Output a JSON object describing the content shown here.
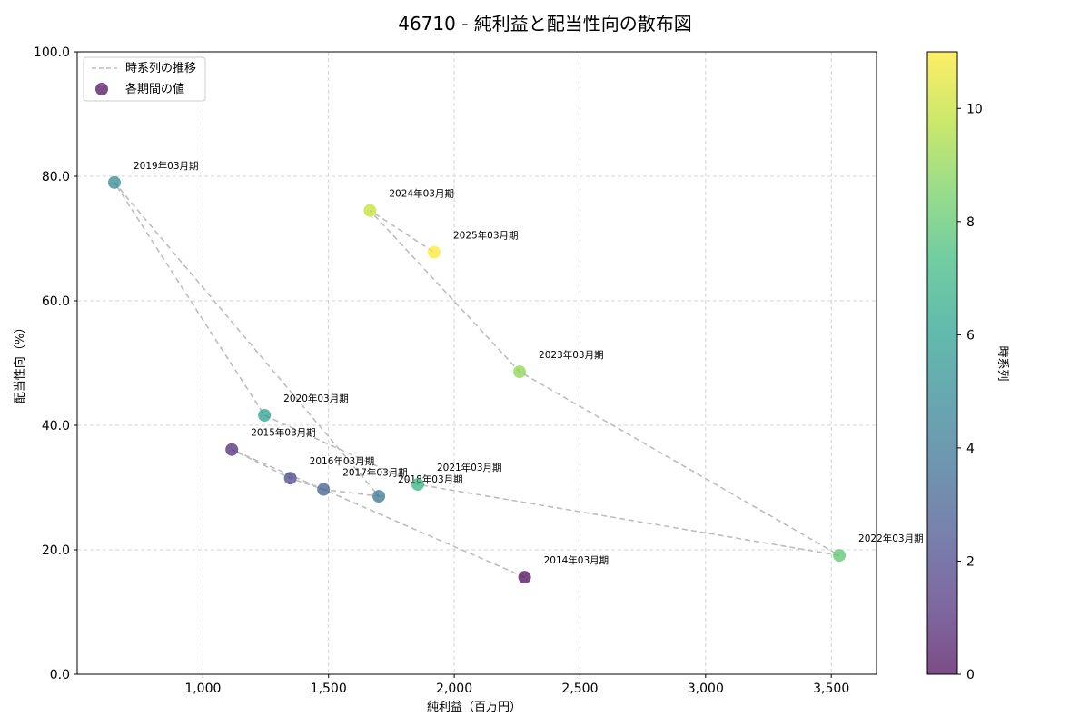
{
  "chart_data": {
    "type": "scatter",
    "title": "46710 - 純利益と配当性向の散布図",
    "xlabel": "純利益（百万円）",
    "ylabel": "配当性向（%）",
    "xlim": [
      500,
      3680
    ],
    "ylim": [
      0,
      100
    ],
    "x_ticks": [
      1000,
      1500,
      2000,
      2500,
      3000,
      3500
    ],
    "x_tick_labels": [
      "1,000",
      "1,500",
      "2,000",
      "2,500",
      "3,000",
      "3,500"
    ],
    "y_ticks": [
      0,
      20,
      40,
      60,
      80,
      100
    ],
    "y_tick_labels": [
      "0.0",
      "20.0",
      "40.0",
      "60.0",
      "80.0",
      "100.0"
    ],
    "grid": true,
    "legend": {
      "position": "top-left",
      "line_label": "時系列の推移",
      "marker_label": "各期間の値"
    },
    "colorbar": {
      "label": "時系列",
      "range": [
        0,
        11
      ],
      "ticks": [
        0,
        2,
        4,
        6,
        8,
        10
      ],
      "tick_labels": [
        "0",
        "2",
        "4",
        "6",
        "8",
        "10"
      ],
      "colormap": [
        "#440154",
        "#482878",
        "#3e4989",
        "#31688e",
        "#26828e",
        "#1f9e89",
        "#35b779",
        "#6ece58",
        "#b5de2b",
        "#fde725"
      ]
    },
    "points": [
      {
        "label": "2014年03月期",
        "x": 2280,
        "y": 15.6,
        "t": 0
      },
      {
        "label": "2015年03月期",
        "x": 1115,
        "y": 36.1,
        "t": 1
      },
      {
        "label": "2016年03月期",
        "x": 1348,
        "y": 31.5,
        "t": 2
      },
      {
        "label": "2017年03月期",
        "x": 1480,
        "y": 29.7,
        "t": 3
      },
      {
        "label": "2018年03月期",
        "x": 1700,
        "y": 28.6,
        "t": 4
      },
      {
        "label": "2019年03月期",
        "x": 648,
        "y": 79.0,
        "t": 5
      },
      {
        "label": "2020年03月期",
        "x": 1245,
        "y": 41.6,
        "t": 6
      },
      {
        "label": "2021年03月期",
        "x": 1855,
        "y": 30.5,
        "t": 7
      },
      {
        "label": "2022年03月期",
        "x": 3532,
        "y": 19.1,
        "t": 8
      },
      {
        "label": "2023年03月期",
        "x": 2260,
        "y": 48.6,
        "t": 9
      },
      {
        "label": "2024年03月期",
        "x": 1665,
        "y": 74.5,
        "t": 10
      },
      {
        "label": "2025年03月期",
        "x": 1920,
        "y": 67.8,
        "t": 11
      }
    ],
    "colors": {
      "line": "#bdbdbd",
      "grid": "#c8c8c8"
    }
  }
}
